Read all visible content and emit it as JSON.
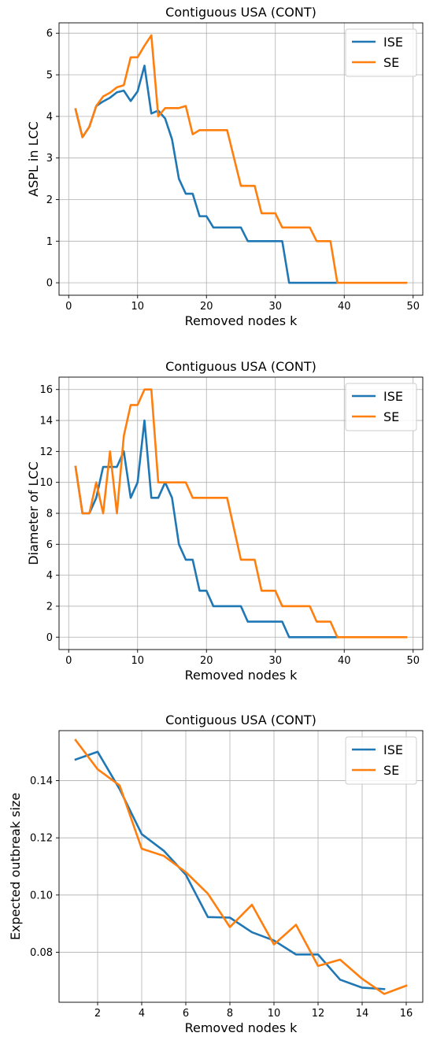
{
  "chart_data": [
    {
      "type": "line",
      "title": "Contiguous USA (CONT)",
      "xlabel": "Removed nodes k",
      "ylabel": "ASPL in LCC",
      "xlim": [
        -1.4,
        51.4
      ],
      "ylim": [
        -0.3,
        6.25
      ],
      "xticks": [
        0,
        10,
        20,
        30,
        40,
        50
      ],
      "yticks": [
        0,
        1,
        2,
        3,
        4,
        5,
        6
      ],
      "grid": true,
      "legend": "top-right",
      "series": [
        {
          "name": "ISE",
          "color": "#1f77b4",
          "x": [
            1,
            2,
            3,
            4,
            5,
            6,
            7,
            8,
            9,
            10,
            11,
            12,
            13,
            14,
            15,
            16,
            17,
            18,
            19,
            20,
            21,
            22,
            23,
            24,
            25,
            26,
            27,
            28,
            29,
            30,
            31,
            32,
            33,
            34,
            35,
            36,
            37,
            38,
            39
          ],
          "y": [
            4.17,
            3.5,
            3.75,
            4.25,
            4.36,
            4.45,
            4.58,
            4.62,
            4.37,
            4.6,
            5.22,
            4.07,
            4.14,
            3.95,
            3.45,
            2.5,
            2.14,
            2.14,
            1.6,
            1.6,
            1.33,
            1.33,
            1.33,
            1.33,
            1.33,
            1.0,
            1.0,
            1.0,
            1.0,
            1.0,
            1.0,
            0,
            0,
            0,
            0,
            0,
            0,
            0,
            0
          ]
        },
        {
          "name": "SE",
          "color": "#ff7f0e",
          "x": [
            1,
            2,
            3,
            4,
            5,
            6,
            7,
            8,
            9,
            10,
            11,
            12,
            13,
            14,
            15,
            16,
            17,
            18,
            19,
            20,
            21,
            22,
            23,
            24,
            25,
            26,
            27,
            28,
            29,
            30,
            31,
            32,
            33,
            34,
            35,
            36,
            37,
            38,
            39,
            40,
            41,
            42,
            43,
            44,
            45,
            46,
            47,
            48,
            49
          ],
          "y": [
            4.17,
            3.5,
            3.75,
            4.25,
            4.48,
            4.57,
            4.7,
            4.75,
            5.42,
            5.42,
            5.7,
            5.95,
            4.0,
            4.2,
            4.2,
            4.2,
            4.25,
            3.57,
            3.67,
            3.67,
            3.67,
            3.67,
            3.67,
            3.0,
            2.33,
            2.33,
            2.33,
            1.67,
            1.67,
            1.67,
            1.33,
            1.33,
            1.33,
            1.33,
            1.33,
            1.0,
            1.0,
            1.0,
            0,
            0,
            0,
            0,
            0,
            0,
            0,
            0,
            0,
            0,
            0
          ]
        }
      ]
    },
    {
      "type": "line",
      "title": "Contiguous USA (CONT)",
      "xlabel": "Removed nodes k",
      "ylabel": "Diameter of LCC",
      "xlim": [
        -1.4,
        51.4
      ],
      "ylim": [
        -0.8,
        16.8
      ],
      "xticks": [
        0,
        10,
        20,
        30,
        40,
        50
      ],
      "yticks": [
        0,
        2,
        4,
        6,
        8,
        10,
        12,
        14,
        16
      ],
      "grid": true,
      "legend": "top-right",
      "series": [
        {
          "name": "ISE",
          "color": "#1f77b4",
          "x": [
            1,
            2,
            3,
            4,
            5,
            6,
            7,
            8,
            9,
            10,
            11,
            12,
            13,
            14,
            15,
            16,
            17,
            18,
            19,
            20,
            21,
            22,
            23,
            24,
            25,
            26,
            27,
            28,
            29,
            30,
            31,
            32,
            33,
            34,
            35,
            36,
            37,
            38,
            39
          ],
          "y": [
            11,
            8,
            8,
            9,
            11,
            11,
            11,
            12,
            9,
            10,
            14,
            9,
            9,
            10,
            9,
            6,
            5,
            5,
            3,
            3,
            2,
            2,
            2,
            2,
            2,
            1,
            1,
            1,
            1,
            1,
            1,
            0,
            0,
            0,
            0,
            0,
            0,
            0,
            0
          ]
        },
        {
          "name": "SE",
          "color": "#ff7f0e",
          "x": [
            1,
            2,
            3,
            4,
            5,
            6,
            7,
            8,
            9,
            10,
            11,
            12,
            13,
            14,
            15,
            16,
            17,
            18,
            19,
            20,
            21,
            22,
            23,
            24,
            25,
            26,
            27,
            28,
            29,
            30,
            31,
            32,
            33,
            34,
            35,
            36,
            37,
            38,
            39,
            40,
            41,
            42,
            43,
            44,
            45,
            46,
            47,
            48,
            49
          ],
          "y": [
            11,
            8,
            8,
            10,
            8,
            12,
            8,
            13,
            15,
            15,
            16,
            16,
            10,
            10,
            10,
            10,
            10,
            9,
            9,
            9,
            9,
            9,
            9,
            7,
            5,
            5,
            5,
            3,
            3,
            3,
            2,
            2,
            2,
            2,
            2,
            1,
            1,
            1,
            0,
            0,
            0,
            0,
            0,
            0,
            0,
            0,
            0,
            0,
            0
          ]
        }
      ]
    },
    {
      "type": "line",
      "title": "Contiguous USA (CONT)",
      "xlabel": "Removed nodes k",
      "ylabel": "Expected outbreak size",
      "xlim": [
        0.25,
        16.75
      ],
      "ylim": [
        0.0625,
        0.1575
      ],
      "xticks": [
        2,
        4,
        6,
        8,
        10,
        12,
        14,
        16
      ],
      "yticks": [
        0.08,
        0.1,
        0.12,
        0.14
      ],
      "yticklabels": [
        "0.08",
        "0.10",
        "0.12",
        "0.14"
      ],
      "grid": true,
      "legend": "top-right",
      "series": [
        {
          "name": "ISE",
          "color": "#1f77b4",
          "x": [
            1,
            2,
            3,
            4,
            5,
            6,
            7,
            8,
            9,
            10,
            11,
            12,
            13,
            14,
            15
          ],
          "y": [
            0.1474,
            0.1501,
            0.137,
            0.1213,
            0.1155,
            0.1071,
            0.0923,
            0.0921,
            0.087,
            0.0841,
            0.0792,
            0.0792,
            0.0704,
            0.0676,
            0.0671
          ]
        },
        {
          "name": "SE",
          "color": "#ff7f0e",
          "x": [
            1,
            2,
            3,
            4,
            5,
            6,
            7,
            8,
            9,
            10,
            11,
            12,
            13,
            14,
            15,
            16
          ],
          "y": [
            0.1542,
            0.144,
            0.1383,
            0.1162,
            0.1137,
            0.108,
            0.1005,
            0.0888,
            0.0966,
            0.0827,
            0.0896,
            0.0752,
            0.0774,
            0.0707,
            0.0654,
            0.0683
          ]
        }
      ]
    }
  ]
}
